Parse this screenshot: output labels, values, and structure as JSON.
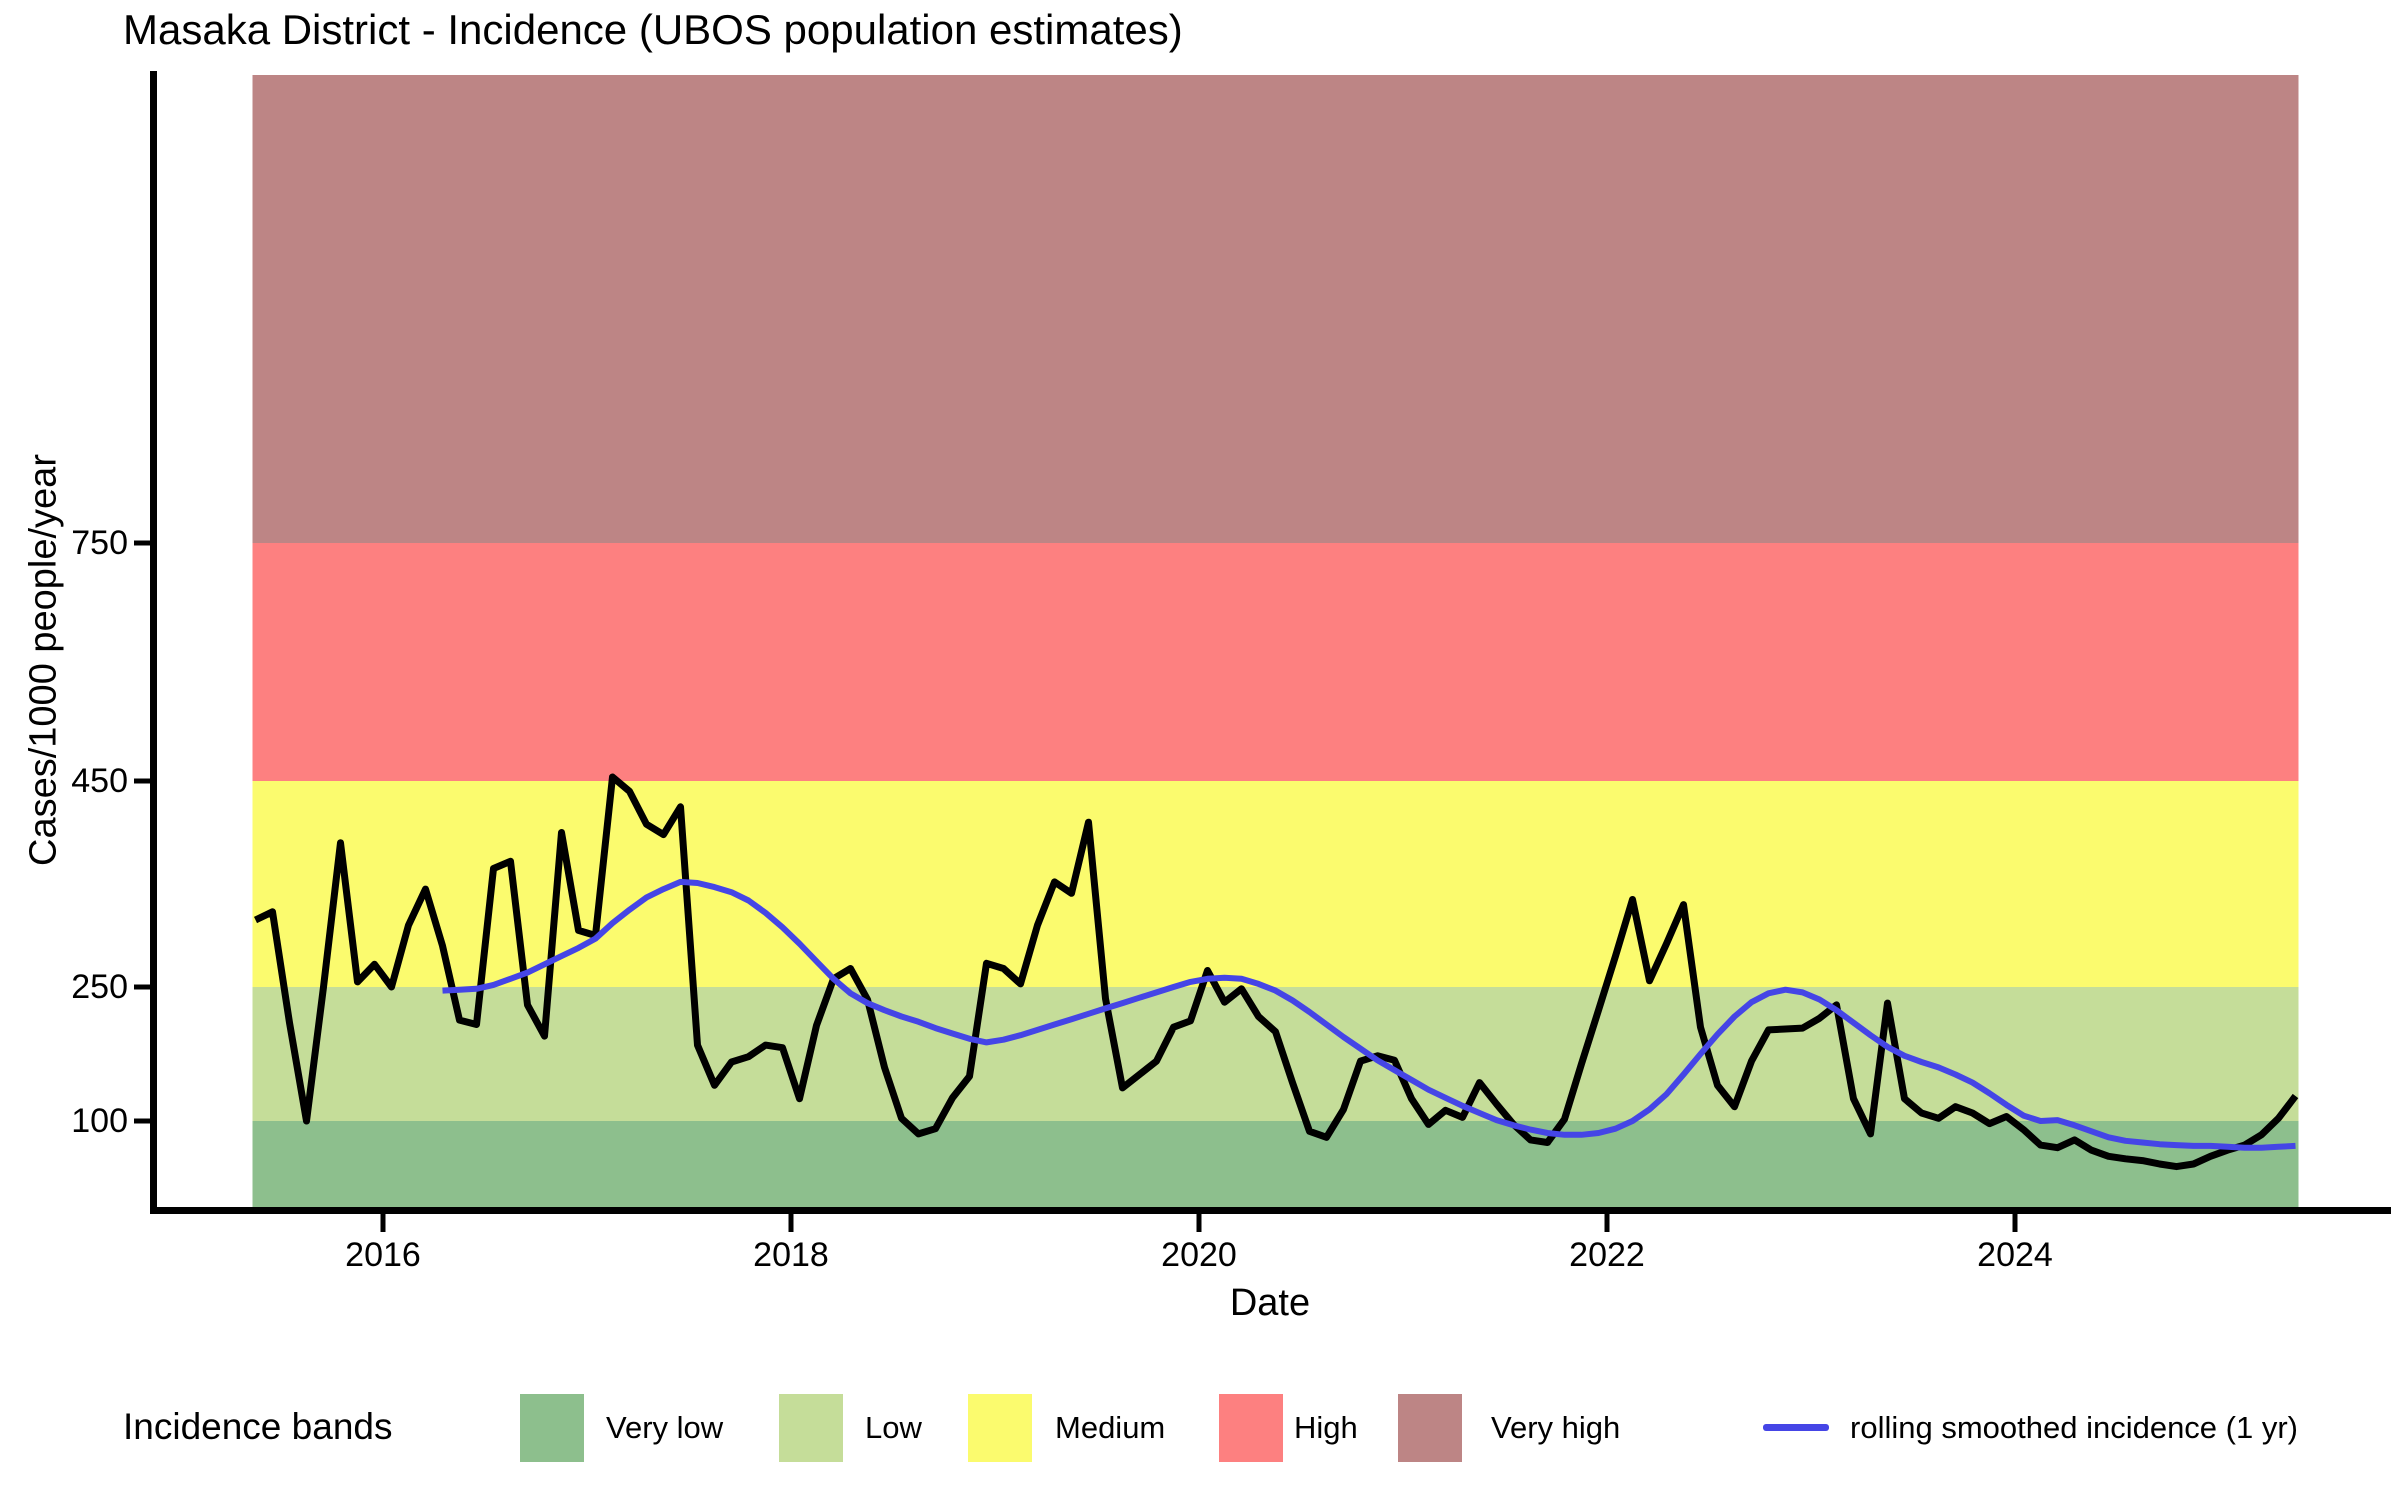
{
  "title": "Masaka District - Incidence (UBOS population estimates)",
  "axes": {
    "x": {
      "label": "Date",
      "ticks": [
        "2016",
        "2018",
        "2020",
        "2022",
        "2024"
      ],
      "tick_years": [
        2016,
        2018,
        2020,
        2022,
        2024
      ]
    },
    "y": {
      "label": "Cases/1000 people/year",
      "ticks": [
        750,
        450,
        250,
        100
      ]
    }
  },
  "legend": {
    "title": "Incidence bands",
    "items": [
      {
        "label": "Very low",
        "color": "#8dbf8d"
      },
      {
        "label": "Low",
        "color": "#c5dd99"
      },
      {
        "label": "Medium",
        "color": "#fbfb6e"
      },
      {
        "label": "High",
        "color": "#fd8080"
      },
      {
        "label": "Very high",
        "color": "#bd8585"
      }
    ],
    "line_item": {
      "label": "rolling smoothed incidence (1 yr)",
      "color": "#4545e6"
    }
  },
  "chart_data": {
    "type": "line",
    "title": "Masaka District - Incidence (UBOS population estimates)",
    "xlabel": "Date",
    "ylabel": "Cases/1000 people/year",
    "x_range_years": [
      2015.375,
      2025.375
    ],
    "y_tick_values": [
      100,
      250,
      450,
      750
    ],
    "grid": false,
    "bands": [
      {
        "label": "Very low",
        "from": 0,
        "to": 100,
        "color": "#8dbf8d"
      },
      {
        "label": "Low",
        "from": 100,
        "to": 250,
        "color": "#c5dd99"
      },
      {
        "label": "Medium",
        "from": 250,
        "to": 450,
        "color": "#fbfb6e"
      },
      {
        "label": "High",
        "from": 450,
        "to": 750,
        "color": "#fd8080"
      },
      {
        "label": "Very high",
        "from": 750,
        "to": null,
        "color": "#bd8585"
      }
    ],
    "series": [
      {
        "name": "monthly incidence",
        "color": "#000000",
        "start_year": 2015,
        "start_month": 5,
        "values": [
          315,
          323,
          210,
          100,
          250,
          390,
          255,
          272,
          250,
          310,
          345,
          290,
          213,
          208,
          365,
          372,
          230,
          195,
          400,
          305,
          300,
          455,
          440,
          408,
          398,
          425,
          185,
          140,
          166,
          172,
          185,
          182,
          125,
          207,
          258,
          268,
          236,
          160,
          103,
          85,
          91,
          126,
          150,
          273,
          268,
          253,
          310,
          352,
          341,
          410,
          237,
          137,
          152,
          167,
          205,
          212,
          266,
          233,
          248,
          217,
          200,
          143,
          88,
          81,
          113,
          167,
          173,
          168,
          125,
          96,
          112,
          104,
          143,
          119,
          96,
          78,
          75,
          102,
          164,
          224,
          280,
          335,
          256,
          292,
          330,
          205,
          140,
          116,
          167,
          202,
          203,
          204,
          215,
          230,
          125,
          85,
          232,
          125,
          109,
          103,
          116,
          109,
          97,
          105,
          90,
          72,
          69,
          78,
          66,
          59,
          56,
          54,
          50,
          47,
          50,
          59,
          66,
          72,
          84,
          103,
          128
        ]
      },
      {
        "name": "rolling smoothed incidence (1 yr)",
        "color": "#4545e6",
        "start_year": 2016,
        "start_month": 4,
        "values": [
          246,
          247,
          248,
          252,
          258,
          264,
          272,
          280,
          288,
          297,
          312,
          325,
          337,
          345,
          352,
          351,
          347,
          342,
          334,
          322,
          308,
          292,
          275,
          258,
          243,
          232,
          224,
          217,
          211,
          204,
          198,
          192,
          188,
          191,
          196,
          202,
          208,
          214,
          220,
          226,
          232,
          238,
          244,
          250,
          255,
          258,
          259,
          258,
          253,
          246,
          235,
          222,
          208,
          194,
          181,
          168,
          157,
          146,
          135,
          126,
          117,
          109,
          101,
          95,
          90,
          86,
          84,
          84,
          86,
          91,
          100,
          113,
          130,
          152,
          175,
          197,
          217,
          233,
          243,
          247,
          244,
          236,
          224,
          210,
          196,
          183,
          173,
          166,
          160,
          152,
          143,
          131,
          118,
          106,
          100,
          101,
          95,
          88,
          81,
          77,
          75,
          73,
          72,
          71,
          71,
          70,
          69,
          69,
          70,
          71
        ]
      }
    ]
  }
}
